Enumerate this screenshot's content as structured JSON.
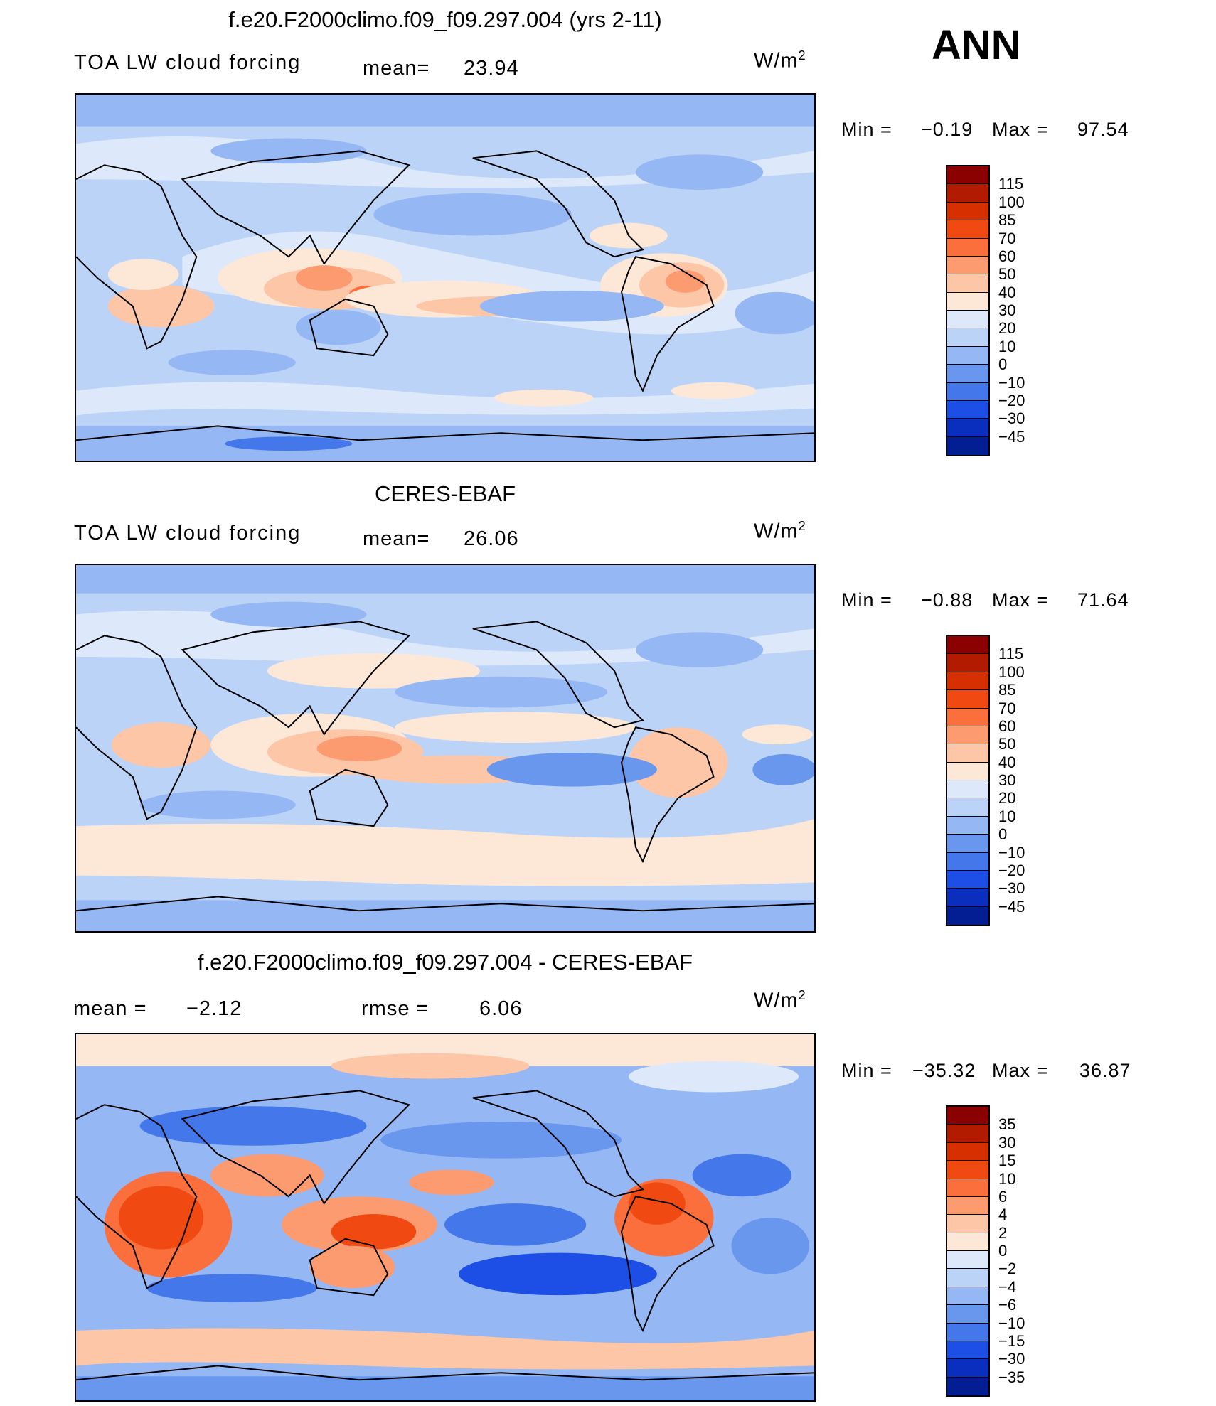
{
  "season": "ANN",
  "panels": [
    {
      "title": "f.e20.F2000climo.f09_f09.297.004 (yrs 2-11)",
      "left_label": "TOA LW cloud forcing",
      "stat1_label": "mean=",
      "stat1_value": "23.94",
      "stat2_label": "",
      "stat2_value": "",
      "units": "W/m",
      "units_sup": "2",
      "min_label": "Min =",
      "min_value": "−0.19",
      "max_label": "Max =",
      "max_value": "97.54",
      "colorbar_levels": [
        "115",
        "100",
        "85",
        "70",
        "60",
        "50",
        "40",
        "30",
        "20",
        "10",
        "0",
        "−10",
        "−20",
        "−30",
        "−45"
      ],
      "colorbar_colors": [
        "#8b0000",
        "#b31b00",
        "#d73000",
        "#f04a12",
        "#fb6f3c",
        "#fc9a70",
        "#fdc6a7",
        "#fde8d8",
        "#dde9fb",
        "#bcd3f8",
        "#95b8f5",
        "#6a97ee",
        "#4477ea",
        "#1d4fe6",
        "#0a2fbf",
        "#031d93"
      ]
    },
    {
      "title": "CERES-EBAF",
      "left_label": "TOA LW cloud forcing",
      "stat1_label": "mean=",
      "stat1_value": "26.06",
      "stat2_label": "",
      "stat2_value": "",
      "units": "W/m",
      "units_sup": "2",
      "min_label": "Min =",
      "min_value": "−0.88",
      "max_label": "Max =",
      "max_value": "71.64",
      "colorbar_levels": [
        "115",
        "100",
        "85",
        "70",
        "60",
        "50",
        "40",
        "30",
        "20",
        "10",
        "0",
        "−10",
        "−20",
        "−30",
        "−45"
      ],
      "colorbar_colors": [
        "#8b0000",
        "#b31b00",
        "#d73000",
        "#f04a12",
        "#fb6f3c",
        "#fc9a70",
        "#fdc6a7",
        "#fde8d8",
        "#dde9fb",
        "#bcd3f8",
        "#95b8f5",
        "#6a97ee",
        "#4477ea",
        "#1d4fe6",
        "#0a2fbf",
        "#031d93"
      ]
    },
    {
      "title": "f.e20.F2000climo.f09_f09.297.004 - CERES-EBAF",
      "left_label": "",
      "stat1_label": "mean =",
      "stat1_value": "−2.12",
      "stat2_label": "rmse =",
      "stat2_value": "6.06",
      "units": "W/m",
      "units_sup": "2",
      "min_label": "Min =",
      "min_value": "−35.32",
      "max_label": "Max =",
      "max_value": "36.87",
      "colorbar_levels": [
        "35",
        "30",
        "15",
        "10",
        "6",
        "4",
        "2",
        "0",
        "−2",
        "−4",
        "−6",
        "−10",
        "−15",
        "−30",
        "−35"
      ],
      "colorbar_colors": [
        "#8b0000",
        "#b31b00",
        "#d73000",
        "#f04a12",
        "#fb6f3c",
        "#fc9a70",
        "#fdc6a7",
        "#fde8d8",
        "#dde9fb",
        "#bcd3f8",
        "#95b8f5",
        "#6a97ee",
        "#4477ea",
        "#1d4fe6",
        "#0a2fbf",
        "#031d93"
      ]
    }
  ]
}
